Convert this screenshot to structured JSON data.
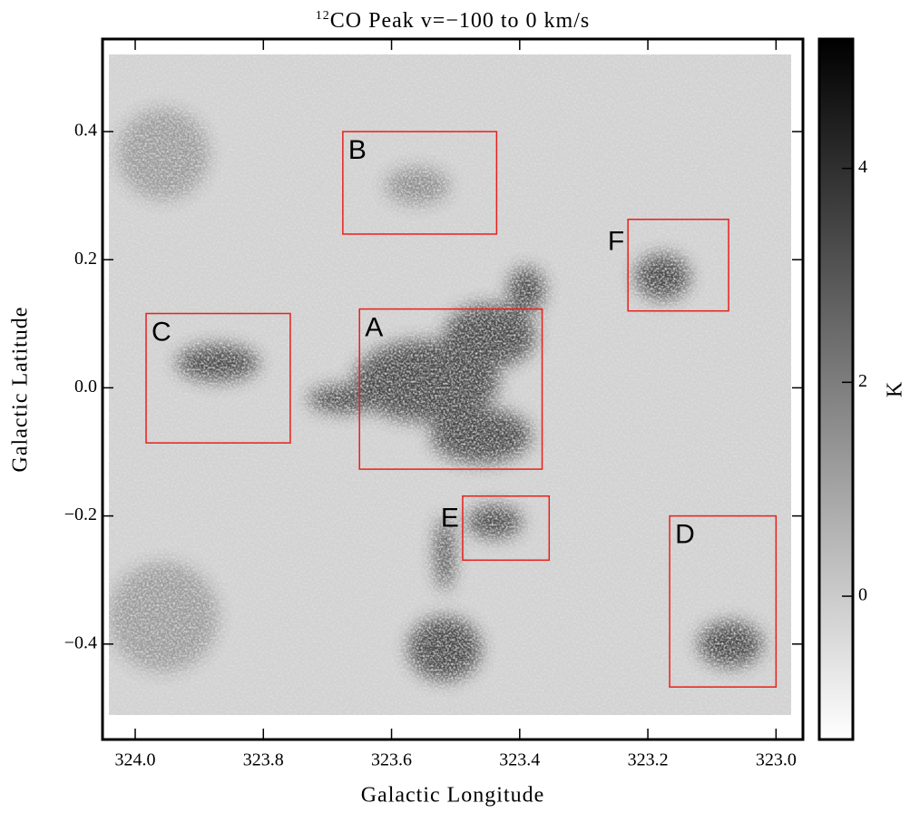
{
  "chart_data": {
    "type": "image",
    "title_superscript": "12",
    "title": "CO Peak v=−100 to 0 km/s",
    "xlabel": "Galactic Longitude",
    "ylabel": "Galactic Latitude",
    "xlim": [
      324.051,
      322.958
    ],
    "ylim": [
      -0.549,
      0.5445
    ],
    "xticks": [
      {
        "value": 324,
        "label": "324.0"
      },
      323.8,
      323.6,
      323.4,
      323.2,
      {
        "value": 323,
        "label": "323.0"
      }
    ],
    "yticks": [
      {
        "value": -0.4,
        "label": "−0.4"
      },
      {
        "value": -0.2,
        "label": "−0.2"
      },
      {
        "value": 0,
        "label": "0.0"
      },
      0.2,
      0.4
    ],
    "colorbar": {
      "label": "K",
      "lim": [
        -1.34,
        5.21
      ],
      "ticks": [
        0,
        2,
        4
      ]
    },
    "box_color": "#e8201c",
    "regions": [
      {
        "label": "A",
        "lon": [
          323.65,
          323.365
        ],
        "lat": [
          0.123,
          -0.127
        ]
      },
      {
        "label": "B",
        "lon": [
          323.676,
          323.436
        ],
        "lat": [
          0.4,
          0.24
        ]
      },
      {
        "label": "C",
        "lon": [
          323.983,
          323.758
        ],
        "lat": [
          0.116,
          -0.086
        ]
      },
      {
        "label": "D",
        "lon": [
          323.166,
          323.0
        ],
        "lat": [
          -0.2,
          -0.467
        ]
      },
      {
        "label": "E",
        "lon": [
          323.489,
          323.354
        ],
        "lat": [
          -0.169,
          -0.269
        ]
      },
      {
        "label": "F",
        "lon": [
          323.231,
          323.074
        ],
        "lat": [
          0.263,
          0.12
        ]
      }
    ]
  }
}
